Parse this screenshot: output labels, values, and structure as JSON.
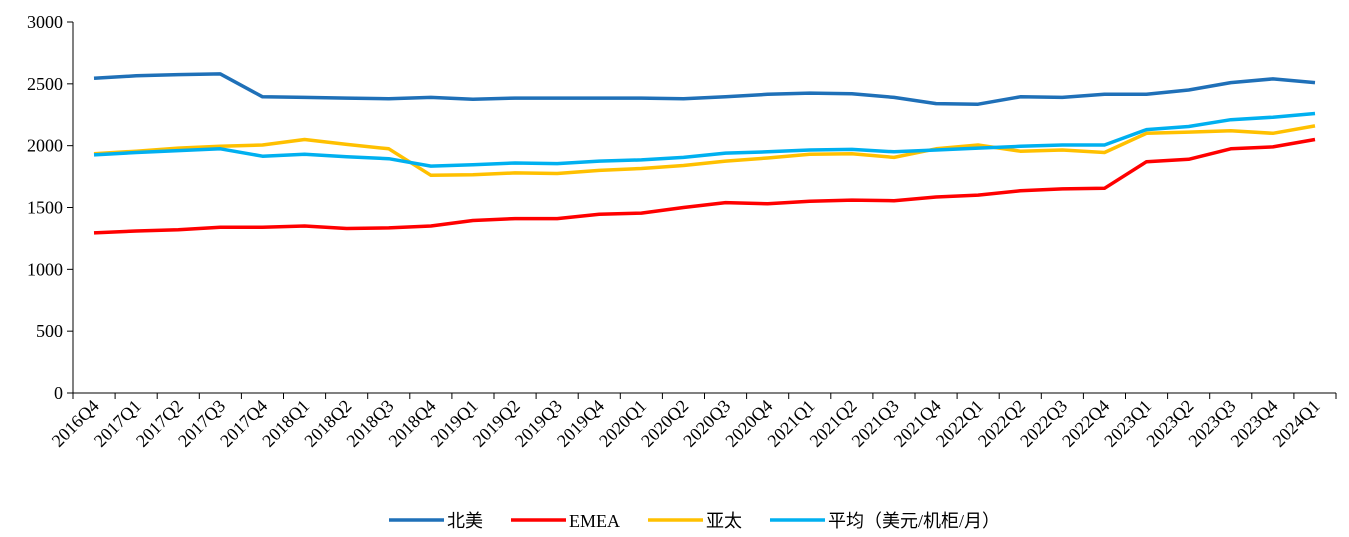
{
  "chart_data": {
    "type": "line",
    "categories": [
      "2016Q4",
      "2017Q1",
      "2017Q2",
      "2017Q3",
      "2017Q4",
      "2018Q1",
      "2018Q2",
      "2018Q3",
      "2018Q4",
      "2019Q1",
      "2019Q2",
      "2019Q3",
      "2019Q4",
      "2020Q1",
      "2020Q2",
      "2020Q3",
      "2020Q4",
      "2021Q1",
      "2021Q2",
      "2021Q3",
      "2021Q4",
      "2022Q1",
      "2022Q2",
      "2022Q3",
      "2022Q4",
      "2023Q1",
      "2023Q2",
      "2023Q3",
      "2023Q4",
      "2024Q1"
    ],
    "series": [
      {
        "name": "北美",
        "color": "#1f70b8",
        "values": [
          2545,
          2565,
          2575,
          2580,
          2395,
          2390,
          2385,
          2380,
          2390,
          2375,
          2385,
          2385,
          2385,
          2385,
          2380,
          2395,
          2415,
          2425,
          2420,
          2390,
          2340,
          2335,
          2395,
          2390,
          2415,
          2415,
          2450,
          2510,
          2540,
          2510
        ]
      },
      {
        "name": "EMEA",
        "color": "#ff0000",
        "values": [
          1295,
          1310,
          1320,
          1340,
          1340,
          1350,
          1330,
          1335,
          1350,
          1395,
          1410,
          1410,
          1445,
          1455,
          1500,
          1540,
          1530,
          1550,
          1560,
          1555,
          1585,
          1600,
          1635,
          1650,
          1655,
          1870,
          1890,
          1975,
          1990,
          2050
        ]
      },
      {
        "name": "亚太",
        "color": "#ffc000",
        "values": [
          1935,
          1955,
          1980,
          1995,
          2005,
          2050,
          2010,
          1975,
          1760,
          1765,
          1780,
          1775,
          1800,
          1815,
          1840,
          1875,
          1900,
          1930,
          1935,
          1905,
          1975,
          2005,
          1955,
          1965,
          1945,
          2100,
          2110,
          2120,
          2100,
          2160
        ]
      },
      {
        "name": "平均（美元/机柜/月）",
        "color": "#00b0f0",
        "values": [
          1925,
          1945,
          1960,
          1975,
          1915,
          1930,
          1910,
          1895,
          1835,
          1845,
          1860,
          1855,
          1875,
          1885,
          1905,
          1940,
          1950,
          1965,
          1970,
          1950,
          1965,
          1980,
          1995,
          2005,
          2005,
          2130,
          2155,
          2210,
          2230,
          2260
        ]
      }
    ],
    "ylim": [
      0,
      3000
    ],
    "yticks": [
      0,
      500,
      1000,
      1500,
      2000,
      2500,
      3000
    ],
    "grid": false,
    "legend": "bottom"
  }
}
